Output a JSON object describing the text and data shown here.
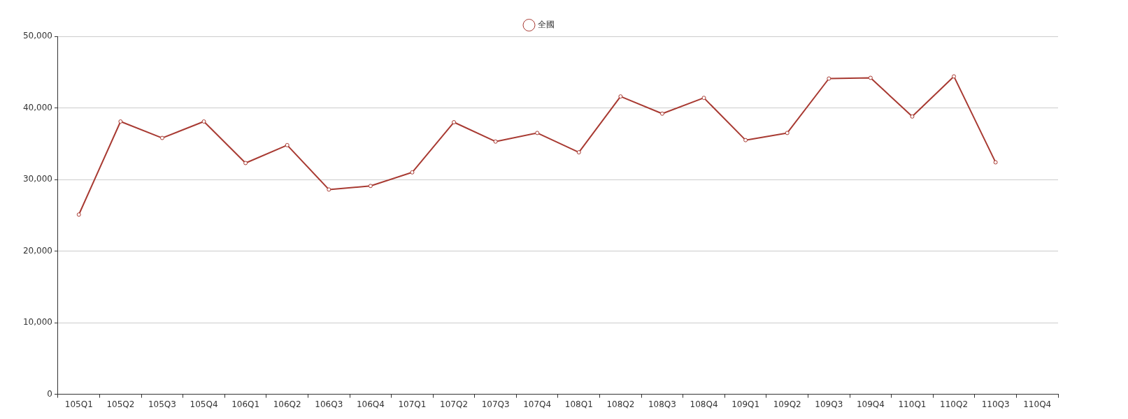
{
  "chart_data": {
    "type": "line",
    "categories": [
      "105Q1",
      "105Q2",
      "105Q3",
      "105Q4",
      "106Q1",
      "106Q2",
      "106Q3",
      "106Q4",
      "107Q1",
      "107Q2",
      "107Q3",
      "107Q4",
      "108Q1",
      "108Q2",
      "108Q3",
      "108Q4",
      "109Q1",
      "109Q2",
      "109Q3",
      "109Q4",
      "110Q1",
      "110Q2",
      "110Q3",
      "110Q4"
    ],
    "series": [
      {
        "name": "全國",
        "color": "#a83a32",
        "values": [
          25100,
          38100,
          35800,
          38100,
          32300,
          34800,
          28600,
          29100,
          31000,
          38000,
          35300,
          36500,
          33800,
          41600,
          39200,
          41400,
          35500,
          36500,
          44100,
          44200,
          38800,
          44400,
          32400,
          null
        ]
      }
    ],
    "ylim": [
      0,
      50000
    ],
    "yticks": [
      {
        "value": 0,
        "label": "0"
      },
      {
        "value": 10000,
        "label": "10,000"
      },
      {
        "value": 20000,
        "label": "20,000"
      },
      {
        "value": 30000,
        "label": "30,000"
      },
      {
        "value": 40000,
        "label": "40,000"
      },
      {
        "value": 50000,
        "label": "50,000"
      }
    ],
    "grid": "y",
    "legend": "top",
    "marker": "circle",
    "line_style": "solid"
  }
}
